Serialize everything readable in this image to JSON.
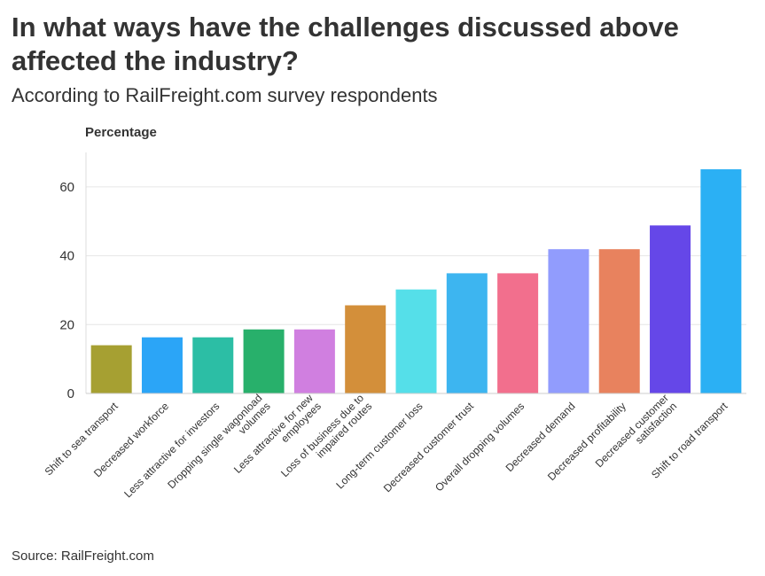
{
  "title": "In what ways have the challenges discussed above affected the industry?",
  "subtitle": "According to RailFreight.com survey respondents",
  "source": "Source: RailFreight.com",
  "chart_data": {
    "type": "bar",
    "ylabel": "Percentage",
    "xlabel": "",
    "ylim": [
      0,
      70
    ],
    "yticks": [
      0,
      20,
      40,
      60
    ],
    "grid": true,
    "categories": [
      [
        "Shift to sea transport"
      ],
      [
        "Decreased workforce"
      ],
      [
        "Less attractive for investors"
      ],
      [
        "Dropping single wagonload",
        "volumes"
      ],
      [
        "Less attractive for new",
        "employees"
      ],
      [
        "Loss of business due to",
        "impaired routes"
      ],
      [
        "Long-term customer loss"
      ],
      [
        "Decreased customer trust"
      ],
      [
        "Overall dropping volumes"
      ],
      [
        "Decreased demand"
      ],
      [
        "Decreased profitability"
      ],
      [
        "Decreased customer",
        "satisfaction"
      ],
      [
        "Shift to road transport"
      ]
    ],
    "values": [
      14,
      16.3,
      16.3,
      18.6,
      18.6,
      25.6,
      30.2,
      34.9,
      34.9,
      41.9,
      41.9,
      48.8,
      65.1
    ],
    "colors": [
      "#a6a032",
      "#2ba5f7",
      "#2cbea5",
      "#28b06b",
      "#d07fe0",
      "#d38f3a",
      "#55dfe9",
      "#3db5f0",
      "#f26f8d",
      "#919cfd",
      "#e8825e",
      "#6547e8",
      "#2bb0f4"
    ]
  }
}
